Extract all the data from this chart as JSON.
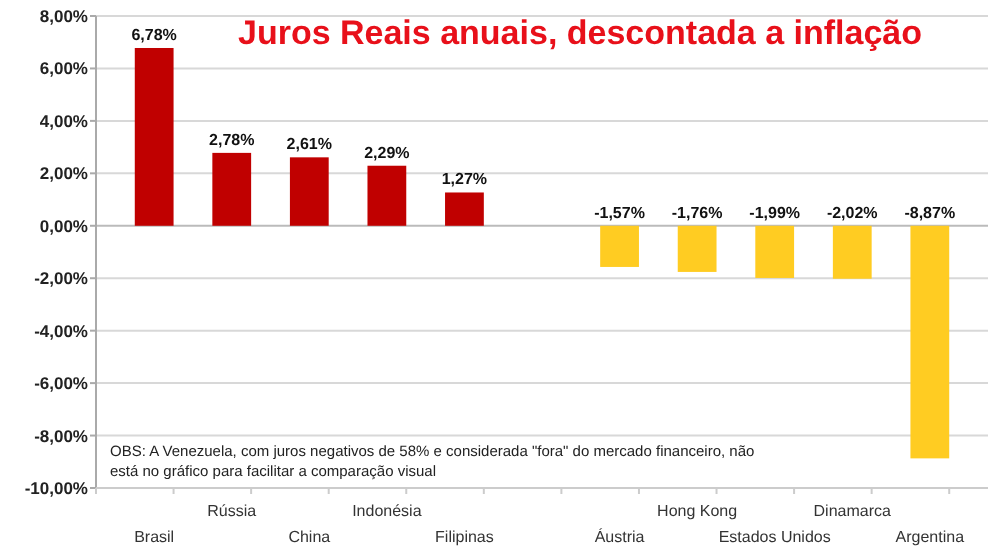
{
  "chart_data": {
    "type": "bar",
    "title": "Juros Reais anuais, descontada a inflação",
    "categories": [
      "Brasil",
      "Rússia",
      "China",
      "Indonésia",
      "Filipinas",
      null,
      "Áustria",
      "Hong Kong",
      "Estados Unidos",
      "Dinamarca",
      "Argentina"
    ],
    "values": [
      6.78,
      2.78,
      2.61,
      2.29,
      1.27,
      null,
      -1.57,
      -1.76,
      -1.99,
      -2.02,
      -8.87
    ],
    "colors": [
      "#c00000",
      "#c00000",
      "#c00000",
      "#c00000",
      "#c00000",
      null,
      "#ffcc22",
      "#ffcc22",
      "#ffcc22",
      "#ffcc22",
      "#ffcc22"
    ],
    "value_labels": [
      "6,78%",
      "2,78%",
      "2,61%",
      "2,29%",
      "1,27%",
      null,
      "-1,57%",
      "-1,76%",
      "-1,99%",
      "-2,02%",
      "-8,87%"
    ],
    "ylim": [
      -10,
      8
    ],
    "yticks": [
      {
        "value": -10,
        "label": "-10,00%"
      },
      {
        "value": -8,
        "label": "-8,00%"
      },
      {
        "value": -6,
        "label": "-6,00%"
      },
      {
        "value": -4,
        "label": "-4,00%"
      },
      {
        "value": -2,
        "label": "-2,00%"
      },
      {
        "value": 0,
        "label": "0,00%"
      },
      {
        "value": 2,
        "label": "2,00%"
      },
      {
        "value": 4,
        "label": "4,00%"
      },
      {
        "value": 6,
        "label": "6,00%"
      },
      {
        "value": 8,
        "label": "8,00%"
      }
    ],
    "grid": "y",
    "annotations": [
      "OBS: A Venezuela, com juros negativos de 58% e considerada \"fora\" do mercado financeiro, não está no gráfico para facilitar a comparação visual"
    ]
  }
}
